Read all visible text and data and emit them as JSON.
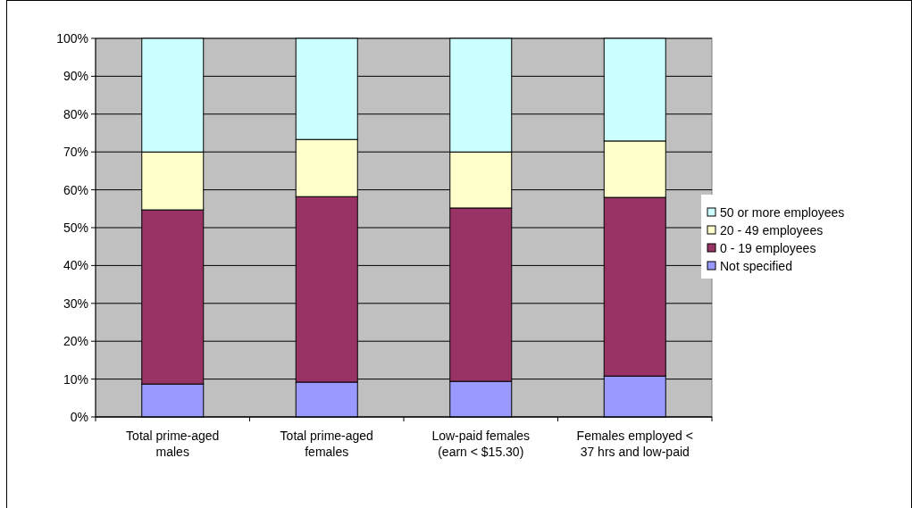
{
  "chart_data": {
    "type": "bar",
    "stacked": true,
    "categories": [
      "Total prime-aged males",
      "Total prime-aged females",
      "Low-paid females (earn < $15.30)",
      "Females employed < 37 hrs and low-paid"
    ],
    "series": [
      {
        "name": "Not specified",
        "color": "#9999ff",
        "values": [
          8.7,
          9.2,
          9.4,
          10.8
        ]
      },
      {
        "name": "0 - 19 employees",
        "color": "#993366",
        "values": [
          46.0,
          49.0,
          45.8,
          47.2
        ]
      },
      {
        "name": "20 - 49 employees",
        "color": "#ffffcc",
        "values": [
          15.3,
          15.1,
          14.8,
          14.9
        ]
      },
      {
        "name": "50 or more employees",
        "color": "#ccffff",
        "values": [
          30.0,
          26.7,
          30.0,
          27.1
        ]
      }
    ],
    "ylim": [
      0,
      100
    ],
    "yticks": [
      {
        "value": 0,
        "label": "0%"
      },
      {
        "value": 10,
        "label": "10%"
      },
      {
        "value": 20,
        "label": "20%"
      },
      {
        "value": 30,
        "label": "30%"
      },
      {
        "value": 40,
        "label": "40%"
      },
      {
        "value": 50,
        "label": "50%"
      },
      {
        "value": 60,
        "label": "60%"
      },
      {
        "value": 70,
        "label": "70%"
      },
      {
        "value": 80,
        "label": "80%"
      },
      {
        "value": 90,
        "label": "90%"
      },
      {
        "value": 100,
        "label": "100%"
      }
    ],
    "grid": "y",
    "legend": "right"
  }
}
